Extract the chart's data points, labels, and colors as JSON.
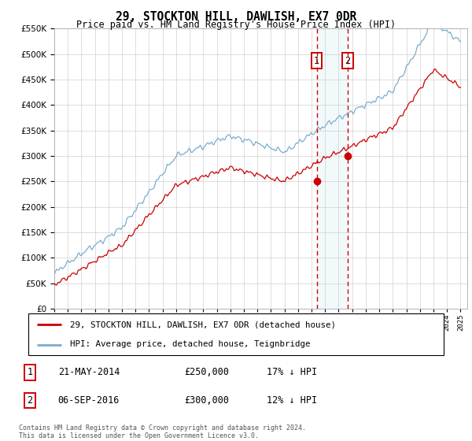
{
  "title": "29, STOCKTON HILL, DAWLISH, EX7 0DR",
  "subtitle": "Price paid vs. HM Land Registry's House Price Index (HPI)",
  "legend_line1": "29, STOCKTON HILL, DAWLISH, EX7 0DR (detached house)",
  "legend_line2": "HPI: Average price, detached house, Teignbridge",
  "sale1_label": "1",
  "sale1_date": "21-MAY-2014",
  "sale1_price": "£250,000",
  "sale1_hpi": "17% ↓ HPI",
  "sale2_label": "2",
  "sale2_date": "06-SEP-2016",
  "sale2_price": "£300,000",
  "sale2_hpi": "12% ↓ HPI",
  "footer": "Contains HM Land Registry data © Crown copyright and database right 2024.\nThis data is licensed under the Open Government Licence v3.0.",
  "red_color": "#cc0000",
  "blue_color": "#7aadcc",
  "sale1_year": 2014.38,
  "sale2_year": 2016.67,
  "ylim_min": 0,
  "ylim_max": 550000,
  "xlim_min": 1995,
  "xlim_max": 2025.5
}
